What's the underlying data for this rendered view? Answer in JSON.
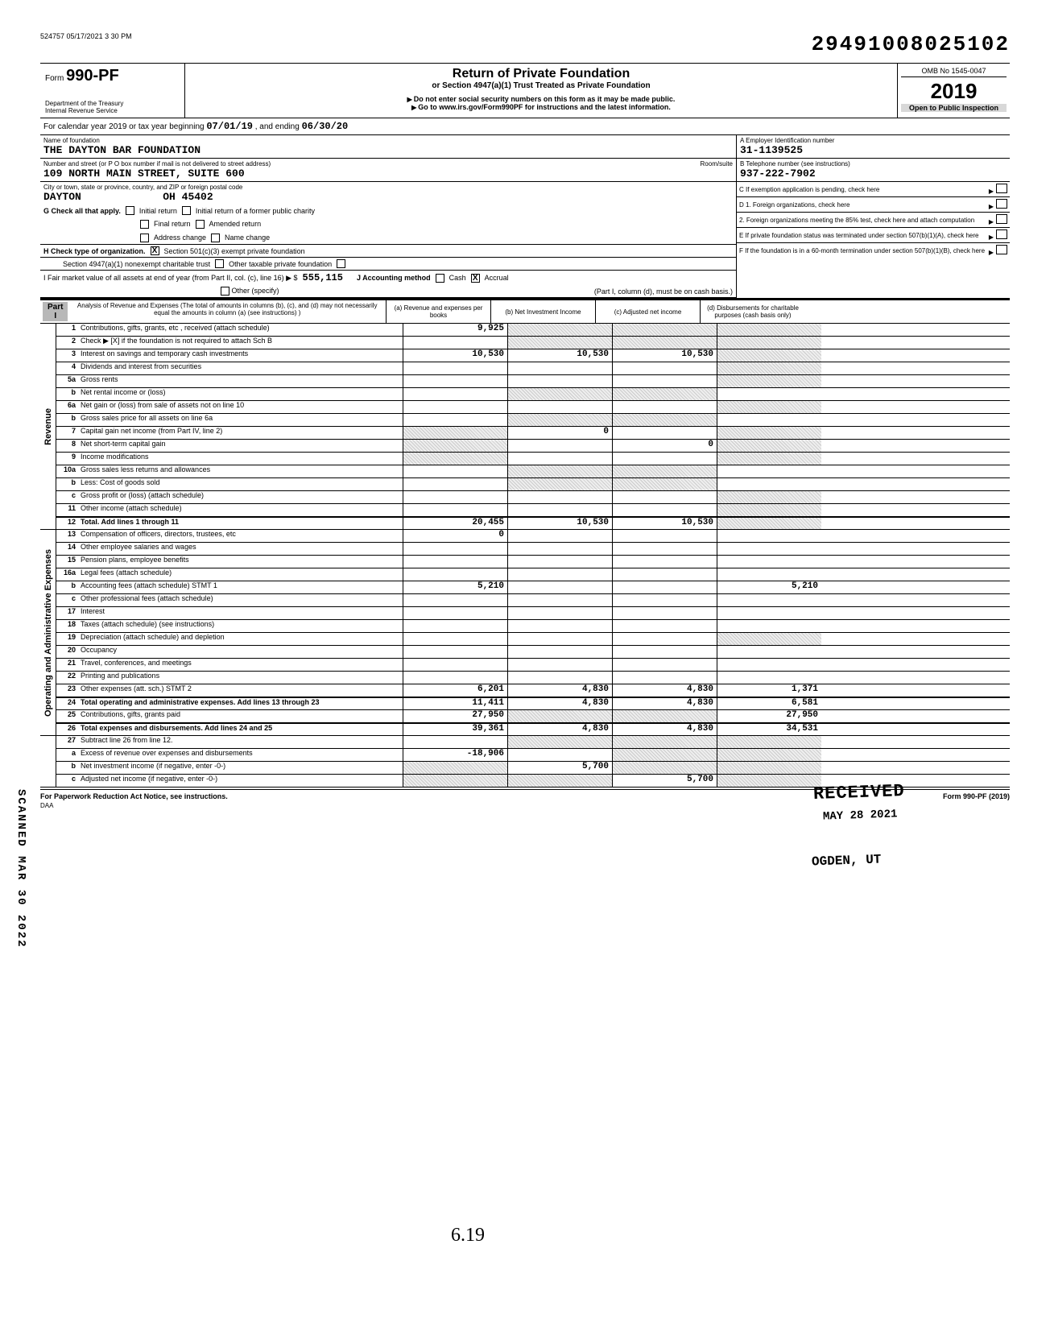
{
  "meta": {
    "print_stamp": "524757 05/17/2021 3 30 PM",
    "document_number": "29491008025102",
    "form_label_small": "Form",
    "form_number": "990-PF",
    "dept": "Department of the Treasury",
    "irs": "Internal Revenue Service",
    "title": "Return of Private Foundation",
    "subtitle": "or Section 4947(a)(1) Trust Treated as Private Foundation",
    "warn": "Do not enter social security numbers on this form as it may be made public.",
    "goto": "Go to www.irs.gov/Form990PF for instructions and the latest information.",
    "omb": "OMB No 1545-0047",
    "year": "2019",
    "inspection": "Open to Public Inspection",
    "period_prefix": "For calendar year 2019 or tax year beginning",
    "period_start": "07/01/19",
    "period_mid": ", and ending",
    "period_end": "06/30/20",
    "hand_619": "6.19",
    "side_stamp": "SCANNED MAR 30 2022",
    "daa": "DAA"
  },
  "foundation": {
    "name_label": "Name of foundation",
    "name": "THE DAYTON BAR FOUNDATION",
    "addr_label": "Number and street (or P O box number if mail is not delivered to street address)",
    "room_label": "Room/suite",
    "address": "109 NORTH MAIN STREET, SUITE 600",
    "city_label": "City or town, state or province, country, and ZIP or foreign postal code",
    "city": "DAYTON",
    "state_zip": "OH  45402"
  },
  "right_panel": {
    "a_label": "A   Employer Identification number",
    "ein": "31-1139525",
    "b_label": "B   Telephone number (see instructions)",
    "phone": "937-222-7902",
    "c_label": "C   If exemption application is pending, check here",
    "d1": "D   1. Foreign organizations, check here",
    "d2": "2. Foreign organizations meeting the 85% test, check here and attach computation",
    "e_label": "E   If private foundation status was terminated under section 507(b)(1)(A), check here",
    "f_label": "F   If the foundation is in a 60-month termination under section 507(b)(1)(B), check here"
  },
  "checks": {
    "g_label": "G  Check all that apply.",
    "initial_return": "Initial return",
    "initial_former": "Initial return of a former public charity",
    "final_return": "Final return",
    "amended": "Amended return",
    "addr_change": "Address change",
    "name_change": "Name change",
    "h_label": "H  Check type of organization.",
    "h_501c3": "Section 501(c)(3) exempt private foundation",
    "h_4947": "Section 4947(a)(1) nonexempt charitable trust",
    "h_other": "Other taxable private foundation",
    "i_label": "I   Fair market value of all assets at end of year (from Part II, col. (c), line 16) ▶  $",
    "i_value": "555,115",
    "j_label": "J  Accounting method",
    "j_cash": "Cash",
    "j_accrual": "Accrual",
    "j_other": "Other (specify)",
    "j_note": "(Part I, column (d), must be on cash basis.)"
  },
  "part1": {
    "tag": "Part I",
    "header": "Analysis of Revenue and Expenses (The total of amounts in columns (b), (c), and (d) may not necessarily equal the amounts in column (a) (see instructions) )",
    "col_a": "(a) Revenue and expenses per books",
    "col_b": "(b) Net Investment Income",
    "col_c": "(c) Adjusted net income",
    "col_d": "(d) Disbursements for charitable purposes (cash basis only)"
  },
  "revenue_label": "Revenue",
  "expenses_label": "Operating and Administrative Expenses",
  "rows": {
    "r1": {
      "num": "1",
      "desc": "Contributions, gifts, grants, etc , received (attach schedule)",
      "a": "9,925",
      "b": "",
      "c": "",
      "d": ""
    },
    "r2": {
      "num": "2",
      "desc": "Check ▶  [X]  if the foundation is not required to attach Sch B",
      "a": "",
      "b": "",
      "c": "",
      "d": ""
    },
    "r3": {
      "num": "3",
      "desc": "Interest on savings and temporary cash investments",
      "a": "10,530",
      "b": "10,530",
      "c": "10,530",
      "d": ""
    },
    "r4": {
      "num": "4",
      "desc": "Dividends and interest from securities",
      "a": "",
      "b": "",
      "c": "",
      "d": ""
    },
    "r5a": {
      "num": "5a",
      "desc": "Gross rents",
      "a": "",
      "b": "",
      "c": "",
      "d": ""
    },
    "r5b": {
      "num": "b",
      "desc": "Net rental income or (loss)",
      "a": "",
      "b": "",
      "c": "",
      "d": ""
    },
    "r6a": {
      "num": "6a",
      "desc": "Net gain or (loss) from sale of assets not on line 10",
      "a": "",
      "b": "",
      "c": "",
      "d": ""
    },
    "r6b": {
      "num": "b",
      "desc": "Gross sales price for all assets on line 6a",
      "a": "",
      "b": "",
      "c": "",
      "d": ""
    },
    "r7": {
      "num": "7",
      "desc": "Capital gain net income (from Part IV, line 2)",
      "a": "",
      "b": "0",
      "c": "",
      "d": ""
    },
    "r8": {
      "num": "8",
      "desc": "Net short-term capital gain",
      "a": "",
      "b": "",
      "c": "0",
      "d": ""
    },
    "r9": {
      "num": "9",
      "desc": "Income modifications",
      "a": "",
      "b": "",
      "c": "",
      "d": ""
    },
    "r10a": {
      "num": "10a",
      "desc": "Gross sales less returns and allowances",
      "a": "",
      "b": "",
      "c": "",
      "d": ""
    },
    "r10b": {
      "num": "b",
      "desc": "Less: Cost of goods sold",
      "a": "",
      "b": "",
      "c": "",
      "d": ""
    },
    "r10c": {
      "num": "c",
      "desc": "Gross profit or (loss) (attach schedule)",
      "a": "",
      "b": "",
      "c": "",
      "d": ""
    },
    "r11": {
      "num": "11",
      "desc": "Other income (attach schedule)",
      "a": "",
      "b": "",
      "c": "",
      "d": ""
    },
    "r12": {
      "num": "12",
      "desc": "Total. Add lines 1 through 11",
      "a": "20,455",
      "b": "10,530",
      "c": "10,530",
      "d": ""
    },
    "r13": {
      "num": "13",
      "desc": "Compensation of officers, directors, trustees, etc",
      "a": "0",
      "b": "",
      "c": "",
      "d": ""
    },
    "r14": {
      "num": "14",
      "desc": "Other employee salaries and wages",
      "a": "",
      "b": "",
      "c": "",
      "d": ""
    },
    "r15": {
      "num": "15",
      "desc": "Pension plans, employee benefits",
      "a": "",
      "b": "",
      "c": "",
      "d": ""
    },
    "r16a": {
      "num": "16a",
      "desc": "Legal fees (attach schedule)",
      "a": "",
      "b": "",
      "c": "",
      "d": ""
    },
    "r16b": {
      "num": "b",
      "desc": "Accounting fees (attach schedule)        STMT 1",
      "a": "5,210",
      "b": "",
      "c": "",
      "d": "5,210"
    },
    "r16c": {
      "num": "c",
      "desc": "Other professional fees (attach schedule)",
      "a": "",
      "b": "",
      "c": "",
      "d": ""
    },
    "r17": {
      "num": "17",
      "desc": "Interest",
      "a": "",
      "b": "",
      "c": "",
      "d": ""
    },
    "r18": {
      "num": "18",
      "desc": "Taxes (attach schedule) (see instructions)",
      "a": "",
      "b": "",
      "c": "",
      "d": ""
    },
    "r19": {
      "num": "19",
      "desc": "Depreciation (attach schedule) and depletion",
      "a": "",
      "b": "",
      "c": "",
      "d": ""
    },
    "r20": {
      "num": "20",
      "desc": "Occupancy",
      "a": "",
      "b": "",
      "c": "",
      "d": ""
    },
    "r21": {
      "num": "21",
      "desc": "Travel, conferences, and meetings",
      "a": "",
      "b": "",
      "c": "",
      "d": ""
    },
    "r22": {
      "num": "22",
      "desc": "Printing and publications",
      "a": "",
      "b": "",
      "c": "",
      "d": ""
    },
    "r23": {
      "num": "23",
      "desc": "Other expenses (att. sch.)               STMT 2",
      "a": "6,201",
      "b": "4,830",
      "c": "4,830",
      "d": "1,371"
    },
    "r24": {
      "num": "24",
      "desc": "Total operating and administrative expenses. Add lines 13 through 23",
      "a": "11,411",
      "b": "4,830",
      "c": "4,830",
      "d": "6,581"
    },
    "r25": {
      "num": "25",
      "desc": "Contributions, gifts, grants paid",
      "a": "27,950",
      "b": "",
      "c": "",
      "d": "27,950"
    },
    "r26": {
      "num": "26",
      "desc": "Total expenses and disbursements. Add lines 24 and 25",
      "a": "39,361",
      "b": "4,830",
      "c": "4,830",
      "d": "34,531"
    },
    "r27": {
      "num": "27",
      "desc": "Subtract line 26 from line 12.",
      "a": "",
      "b": "",
      "c": "",
      "d": ""
    },
    "r27a": {
      "num": "a",
      "desc": "Excess of revenue over expenses and disbursements",
      "a": "-18,906",
      "b": "",
      "c": "",
      "d": ""
    },
    "r27b": {
      "num": "b",
      "desc": "Net investment income (if negative, enter -0-)",
      "a": "",
      "b": "5,700",
      "c": "",
      "d": ""
    },
    "r27c": {
      "num": "c",
      "desc": "Adjusted net income (if negative, enter -0-)",
      "a": "",
      "b": "",
      "c": "5,700",
      "d": ""
    }
  },
  "stamps": {
    "received": "RECEIVED",
    "date": "MAY 28 2021",
    "city": "OGDEN, UT"
  },
  "footer": {
    "left": "For Paperwork Reduction Act Notice, see instructions.",
    "right": "Form 990-PF (2019)"
  },
  "shading": {
    "shaded_d_rows": [
      "r1",
      "r2",
      "r3",
      "r4",
      "r5a",
      "r6a",
      "r7",
      "r8",
      "r9",
      "r10c",
      "r11",
      "r12"
    ],
    "shaded_bc_rows": [
      "r1",
      "r2",
      "r5b",
      "r6b",
      "r10a",
      "r10b"
    ],
    "shaded_a_rows": [
      "r7",
      "r8",
      "r9"
    ],
    "shaded_bcd_27": [
      "r27"
    ],
    "shaded_cd_27a": [
      "r27a"
    ],
    "shaded_acd_27b": [
      "r27b"
    ],
    "shaded_abd_27c": [
      "r27c"
    ],
    "shaded_bc_25": [
      "r25"
    ],
    "shaded_d_19": [
      "r19"
    ]
  }
}
